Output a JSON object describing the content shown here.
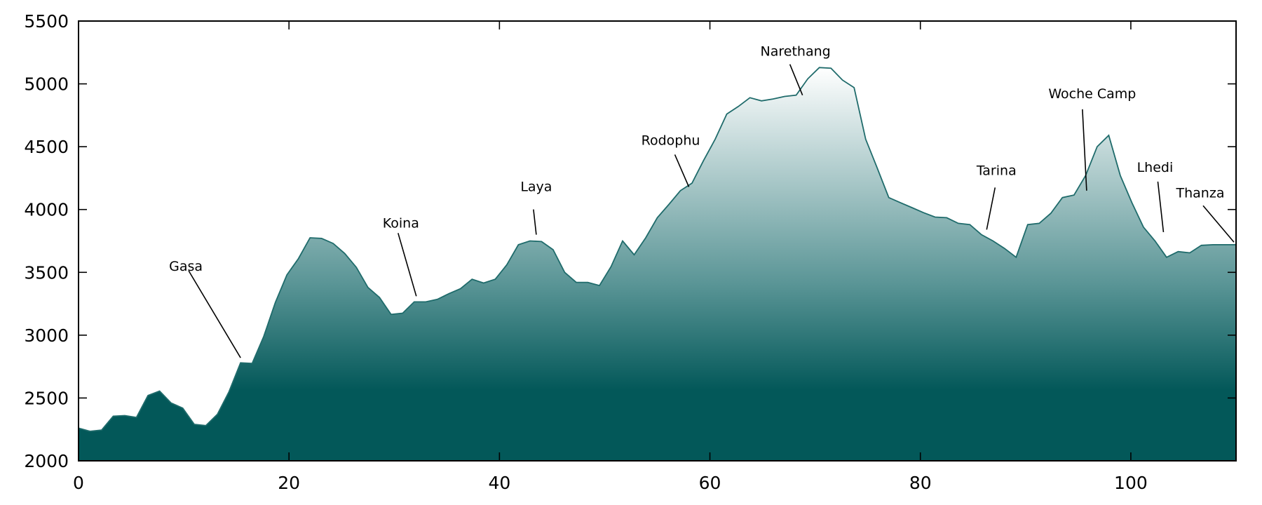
{
  "chart_data": {
    "type": "area",
    "title": "",
    "xlabel": "",
    "ylabel": "",
    "xlim": [
      0,
      110
    ],
    "ylim": [
      2000,
      5500
    ],
    "x_ticks": [
      0,
      20,
      40,
      60,
      80,
      100
    ],
    "y_ticks": [
      2000,
      2500,
      3000,
      3500,
      4000,
      4500,
      5000,
      5500
    ],
    "x_tick_labels": [
      "0",
      "20",
      "40",
      "60",
      "80",
      "100"
    ],
    "y_tick_labels": [
      "2000",
      "2500",
      "3000",
      "3500",
      "4000",
      "4500",
      "5000",
      "5500"
    ],
    "grid": false,
    "colors": {
      "line": "#1f6b6b",
      "fill_top": "#ffffff",
      "fill_bottom": "#035859"
    },
    "series": [
      {
        "x": [
          0,
          1.1,
          2.2,
          3.3,
          4.4,
          5.5,
          6.6,
          7.7,
          8.8,
          9.9,
          11.0,
          12.1,
          13.2,
          14.3,
          15.4,
          16.5,
          17.6,
          18.7,
          19.8,
          20.9,
          22.0,
          23.1,
          24.2,
          25.3,
          26.4,
          27.5,
          28.6,
          29.7,
          30.8,
          31.9,
          33.0,
          34.1,
          35.2,
          36.3,
          37.4,
          38.5,
          39.6,
          40.7,
          41.8,
          42.9,
          44.0,
          45.1,
          46.2,
          47.3,
          48.4,
          49.5,
          50.6,
          51.7,
          52.8,
          53.9,
          55.0,
          56.1,
          57.2,
          58.3,
          59.4,
          60.5,
          61.6,
          62.7,
          63.8,
          64.9,
          66.0,
          67.1,
          68.2,
          69.3,
          70.4,
          71.5,
          72.6,
          73.7,
          74.8,
          75.9,
          77.0,
          78.1,
          79.2,
          80.3,
          81.4,
          82.5,
          83.6,
          84.7,
          85.8,
          86.9,
          88.0,
          89.1,
          90.2,
          91.3,
          92.4,
          93.5,
          94.6,
          95.7,
          96.8,
          97.9,
          99.0,
          100.1,
          101.2,
          102.3,
          103.4,
          104.5,
          105.6,
          106.7,
          107.8,
          108.9,
          110.0
        ],
        "y": [
          2260,
          2235,
          2245,
          2355,
          2360,
          2345,
          2520,
          2555,
          2460,
          2420,
          2290,
          2280,
          2370,
          2550,
          2780,
          2775,
          2990,
          3260,
          3480,
          3610,
          3775,
          3770,
          3730,
          3650,
          3540,
          3380,
          3300,
          3165,
          3175,
          3265,
          3265,
          3285,
          3330,
          3370,
          3445,
          3415,
          3445,
          3560,
          3720,
          3750,
          3745,
          3680,
          3500,
          3420,
          3420,
          3395,
          3545,
          3750,
          3640,
          3775,
          3935,
          4040,
          4150,
          4210,
          4390,
          4560,
          4760,
          4820,
          4890,
          4865,
          4880,
          4900,
          4910,
          5040,
          5130,
          5125,
          5030,
          4970,
          4560,
          4330,
          4095,
          4055,
          4015,
          3975,
          3940,
          3935,
          3890,
          3880,
          3800,
          3750,
          3690,
          3620,
          3880,
          3890,
          3970,
          4095,
          4115,
          4270,
          4500,
          4590,
          4270,
          4055,
          3860,
          3750,
          3620,
          3665,
          3655,
          3715,
          3720,
          3720,
          3720
        ]
      }
    ],
    "annotations": [
      {
        "label": "Gasa",
        "x": 15.4,
        "y": 2820
      },
      {
        "label": "Koina",
        "x": 32.1,
        "y": 3310
      },
      {
        "label": "Laya",
        "x": 43.5,
        "y": 3800
      },
      {
        "label": "Rodophu",
        "x": 58.0,
        "y": 4180
      },
      {
        "label": "Narethang",
        "x": 68.8,
        "y": 4910
      },
      {
        "label": "Tarina",
        "x": 86.3,
        "y": 3840
      },
      {
        "label": "Woche Camp",
        "x": 95.8,
        "y": 4150
      },
      {
        "label": "Lhedi",
        "x": 103.1,
        "y": 3820
      },
      {
        "label": "Thanza",
        "x": 109.8,
        "y": 3740
      }
    ]
  }
}
